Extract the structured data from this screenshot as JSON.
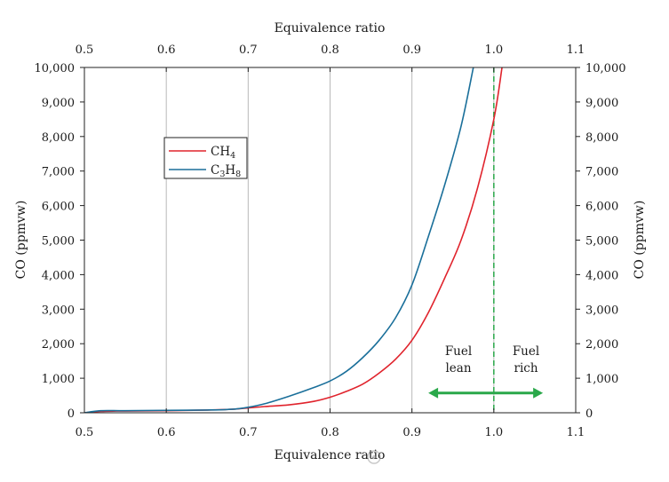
{
  "chart_data": {
    "type": "line",
    "xlabel_top": "Equivalence ratio",
    "xlabel_bottom": "Equivalence ratio",
    "ylabel_left": "CO (ppmvw)",
    "ylabel_right": "CO (ppmvw)",
    "xlim": [
      0.5,
      1.1
    ],
    "ylim": [
      0,
      10000
    ],
    "x_ticks": [
      {
        "v": 0.5,
        "label": "0.5"
      },
      {
        "v": 0.6,
        "label": "0.6"
      },
      {
        "v": 0.7,
        "label": "0.7"
      },
      {
        "v": 0.8,
        "label": "0.8"
      },
      {
        "v": 0.9,
        "label": "0.9"
      },
      {
        "v": 1.0,
        "label": "1.0"
      },
      {
        "v": 1.1,
        "label": "1.1"
      }
    ],
    "y_ticks": [
      {
        "v": 0,
        "label": "0"
      },
      {
        "v": 1000,
        "label": "1,000"
      },
      {
        "v": 2000,
        "label": "2,000"
      },
      {
        "v": 3000,
        "label": "3,000"
      },
      {
        "v": 4000,
        "label": "4,000"
      },
      {
        "v": 5000,
        "label": "5,000"
      },
      {
        "v": 6000,
        "label": "6,000"
      },
      {
        "v": 7000,
        "label": "7,000"
      },
      {
        "v": 8000,
        "label": "8,000"
      },
      {
        "v": 9000,
        "label": "9,000"
      },
      {
        "v": 10000,
        "label": "10,000"
      }
    ],
    "grid": "vertical",
    "legend_position": "upper-left",
    "series": [
      {
        "name": "CH4",
        "label_main": "CH",
        "label_sub": "4",
        "color": "#e0232c",
        "x": [
          0.5,
          0.52,
          0.55,
          0.6,
          0.65,
          0.68,
          0.7,
          0.72,
          0.75,
          0.78,
          0.8,
          0.82,
          0.84,
          0.86,
          0.88,
          0.9,
          0.92,
          0.94,
          0.96,
          0.98,
          1.0,
          1.01
        ],
        "y": [
          0,
          40,
          50,
          60,
          80,
          100,
          140,
          180,
          230,
          330,
          450,
          620,
          830,
          1150,
          1550,
          2100,
          2900,
          3900,
          5000,
          6500,
          8500,
          10000
        ]
      },
      {
        "name": "C3H8",
        "label_main": "C",
        "label_sub": "3",
        "label_main2": "H",
        "label_sub2": "8",
        "color": "#1a6f9a",
        "x": [
          0.5,
          0.52,
          0.55,
          0.6,
          0.65,
          0.68,
          0.7,
          0.72,
          0.75,
          0.78,
          0.8,
          0.82,
          0.84,
          0.86,
          0.88,
          0.9,
          0.92,
          0.94,
          0.96,
          0.975
        ],
        "y": [
          0,
          60,
          60,
          70,
          80,
          100,
          160,
          260,
          480,
          730,
          920,
          1200,
          1600,
          2100,
          2750,
          3700,
          5100,
          6600,
          8300,
          10000
        ]
      }
    ],
    "stoich_line": {
      "x": 1.0,
      "color": "#2aa84a"
    },
    "fuel_arrow": {
      "x_from": 0.92,
      "x_to": 1.06,
      "y": 700,
      "color": "#2aa84a"
    },
    "annotations": [
      {
        "id": "lean",
        "line1": "Fuel",
        "line2": "lean",
        "x": 0.96,
        "y": 1800
      },
      {
        "id": "rich",
        "line1": "Fuel",
        "line2": "rich",
        "x": 1.04,
        "y": 1800
      }
    ]
  }
}
